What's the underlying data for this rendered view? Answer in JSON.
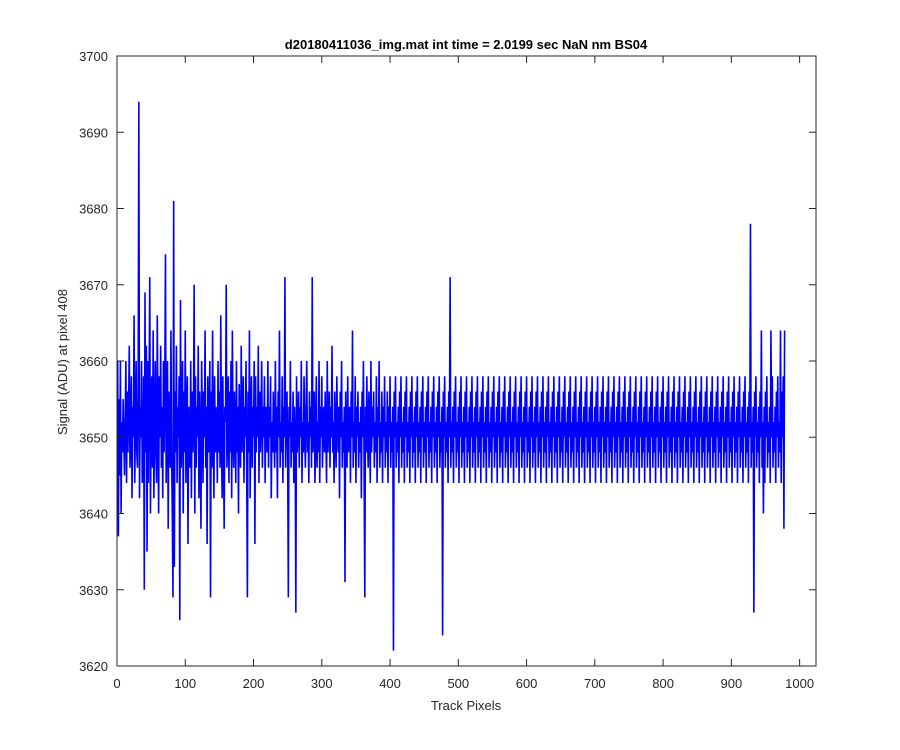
{
  "window": {
    "background": "#ffffff"
  },
  "chart_data": {
    "type": "line",
    "title": "d20180411036_img.mat int time = 2.0199 sec  NaN nm BS04",
    "xlabel": "Track Pixels",
    "ylabel": "Signal (ADU) at pixel 408",
    "xlim": [
      0,
      1024
    ],
    "ylim": [
      3620,
      3700
    ],
    "xticks": [
      0,
      100,
      200,
      300,
      400,
      500,
      600,
      700,
      800,
      900,
      1000
    ],
    "yticks": [
      3620,
      3630,
      3640,
      3650,
      3660,
      3670,
      3680,
      3690,
      3700
    ],
    "grid": false,
    "box": true,
    "colors": {
      "series": "#0000ff",
      "axes": "#262626",
      "background": "#ffffff"
    },
    "series": [
      {
        "x_start": 1,
        "x_step": 1,
        "values": [
          3660,
          3637,
          3655,
          3645,
          3660,
          3640,
          3652,
          3648,
          3655,
          3650,
          3645,
          3652,
          3660,
          3644,
          3656,
          3648,
          3654,
          3662,
          3646,
          3650,
          3658,
          3642,
          3654,
          3650,
          3666,
          3644,
          3652,
          3660,
          3648,
          3646,
          3656,
          3694,
          3642,
          3654,
          3650,
          3660,
          3644,
          3646,
          3658,
          3630,
          3669,
          3648,
          3662,
          3635,
          3660,
          3644,
          3656,
          3671,
          3640,
          3652,
          3658,
          3646,
          3664,
          3642,
          3650,
          3660,
          3648,
          3644,
          3666,
          3652,
          3640,
          3658,
          3650,
          3662,
          3646,
          3654,
          3642,
          3660,
          3648,
          3656,
          3674,
          3644,
          3652,
          3660,
          3638,
          3656,
          3650,
          3646,
          3664,
          3648,
          3640,
          3629,
          3681,
          3633,
          3656,
          3648,
          3662,
          3644,
          3654,
          3650,
          3658,
          3626,
          3668,
          3646,
          3652,
          3660,
          3640,
          3656,
          3648,
          3664,
          3644,
          3652,
          3658,
          3636,
          3654,
          3650,
          3646,
          3660,
          3642,
          3656,
          3648,
          3652,
          3670,
          3640,
          3658,
          3646,
          3654,
          3650,
          3662,
          3642,
          3656,
          3648,
          3638,
          3660,
          3652,
          3644,
          3656,
          3650,
          3664,
          3646,
          3654,
          3636,
          3658,
          3648,
          3652,
          3660,
          3629,
          3656,
          3646,
          3664,
          3650,
          3642,
          3658,
          3648,
          3654,
          3652,
          3644,
          3660,
          3648,
          3656,
          3646,
          3666,
          3650,
          3642,
          3658,
          3648,
          3638,
          3654,
          3652,
          3670,
          3646,
          3650,
          3658,
          3644,
          3656,
          3648,
          3660,
          3642,
          3664,
          3650,
          3646,
          3656,
          3652,
          3644,
          3660,
          3648,
          3654,
          3640,
          3657,
          3650,
          3646,
          3662,
          3648,
          3652,
          3658,
          3644,
          3654,
          3650,
          3660,
          3646,
          3629,
          3656,
          3648,
          3664,
          3642,
          3652,
          3658,
          3646,
          3654,
          3650,
          3660,
          3636,
          3658,
          3648,
          3654,
          3650,
          3662,
          3644,
          3656,
          3648,
          3652,
          3660,
          3646,
          3654,
          3650,
          3658,
          3644,
          3654,
          3652,
          3648,
          3660,
          3646,
          3654,
          3650,
          3658,
          3642,
          3652,
          3648,
          3656,
          3650,
          3646,
          3660,
          3648,
          3654,
          3642,
          3656,
          3650,
          3664,
          3646,
          3652,
          3648,
          3658,
          3644,
          3654,
          3650,
          3671,
          3646,
          3652,
          3656,
          3648,
          3629,
          3654,
          3650,
          3660,
          3646,
          3652,
          3648,
          3656,
          3644,
          3654,
          3650,
          3627,
          3658,
          3648,
          3652,
          3656,
          3646,
          3654,
          3650,
          3660,
          3644,
          3652,
          3648,
          3658,
          3650,
          3646,
          3654,
          3660,
          3648,
          3652,
          3644,
          3656,
          3650,
          3654,
          3646,
          3671,
          3648,
          3652,
          3656,
          3644,
          3650,
          3658,
          3646,
          3652,
          3648,
          3660,
          3644,
          3654,
          3650,
          3658,
          3646,
          3652,
          3654,
          3648,
          3656,
          3650,
          3644,
          3660,
          3648,
          3652,
          3656,
          3646,
          3654,
          3650,
          3662,
          3648,
          3652,
          3644,
          3656,
          3650,
          3646,
          3658,
          3652,
          3648,
          3654,
          3642,
          3656,
          3650,
          3660,
          3646,
          3652,
          3648,
          3654,
          3631,
          3656,
          3650,
          3646,
          3658,
          3648,
          3652,
          3654,
          3644,
          3656,
          3650,
          3664,
          3646,
          3652,
          3648,
          3658,
          3644,
          3654,
          3650,
          3656,
          3646,
          3652,
          3648,
          3654,
          3642,
          3656,
          3650,
          3660,
          3646,
          3629,
          3654,
          3648,
          3658,
          3650,
          3646,
          3656,
          3652,
          3644,
          3660,
          3648,
          3654,
          3650,
          3656,
          3646,
          3652,
          3648,
          3658,
          3644,
          3654,
          3650,
          3660,
          3646,
          3652,
          3648,
          3656,
          3644,
          3654,
          3650,
          3658,
          3646,
          3652,
          3648,
          3656,
          3644,
          3654,
          3650,
          3658,
          3646,
          3652,
          3648,
          3654,
          3622,
          3656,
          3650,
          3658,
          3646,
          3652,
          3648,
          3654,
          3644,
          3656,
          3650,
          3658,
          3646,
          3652,
          3648,
          3654,
          3644,
          3656,
          3650,
          3658,
          3646,
          3652,
          3648,
          3654,
          3644,
          3656,
          3650,
          3658,
          3646,
          3652,
          3648,
          3654,
          3644,
          3656,
          3650,
          3658,
          3646,
          3652,
          3648,
          3654,
          3644,
          3656,
          3650,
          3658,
          3646,
          3652,
          3648,
          3654,
          3644,
          3656,
          3650,
          3658,
          3646,
          3652,
          3648,
          3654,
          3644,
          3656,
          3650,
          3658,
          3646,
          3652,
          3648,
          3654,
          3644,
          3656,
          3650,
          3658,
          3646,
          3652,
          3648,
          3654,
          3624,
          3656,
          3650,
          3658,
          3646,
          3652,
          3648,
          3654,
          3644,
          3656,
          3650,
          3671,
          3646,
          3652,
          3648,
          3654,
          3644,
          3656,
          3650,
          3658,
          3646,
          3652,
          3648,
          3654,
          3644,
          3656,
          3650,
          3658,
          3646,
          3652,
          3648,
          3654,
          3644,
          3656,
          3650,
          3658,
          3646,
          3652,
          3648,
          3654,
          3644,
          3656,
          3650,
          3658,
          3646,
          3652,
          3648,
          3654,
          3644,
          3656,
          3650,
          3658,
          3646,
          3652,
          3648,
          3654,
          3644,
          3656,
          3650,
          3658,
          3646,
          3652,
          3648,
          3654,
          3644,
          3656,
          3650,
          3658,
          3646,
          3652,
          3648,
          3654,
          3644,
          3656,
          3650,
          3658,
          3646,
          3652,
          3648,
          3654,
          3644,
          3656,
          3650,
          3658,
          3646,
          3652,
          3648,
          3654,
          3644,
          3656,
          3650,
          3658,
          3646,
          3652,
          3648,
          3654,
          3644,
          3656,
          3650,
          3658,
          3646,
          3652,
          3648,
          3654,
          3644,
          3656,
          3650,
          3658,
          3646,
          3652,
          3648,
          3654,
          3644,
          3656,
          3650,
          3658,
          3646,
          3652,
          3648,
          3654,
          3644,
          3656,
          3650,
          3658,
          3646,
          3652,
          3648,
          3654,
          3644,
          3656,
          3650,
          3658,
          3646,
          3652,
          3648,
          3654,
          3644,
          3656,
          3650,
          3658,
          3646,
          3652,
          3648,
          3654,
          3644,
          3656,
          3650,
          3658,
          3646,
          3652,
          3648,
          3654,
          3644,
          3656,
          3650,
          3658,
          3646,
          3652,
          3648,
          3654,
          3644,
          3656,
          3650,
          3658,
          3646,
          3652,
          3648,
          3654,
          3644,
          3656,
          3650,
          3658,
          3646,
          3652,
          3648,
          3654,
          3644,
          3656,
          3650,
          3658,
          3646,
          3652,
          3648,
          3654,
          3644,
          3656,
          3650,
          3658,
          3646,
          3652,
          3648,
          3654,
          3644,
          3656,
          3650,
          3658,
          3646,
          3652,
          3648,
          3654,
          3644,
          3656,
          3650,
          3658,
          3646,
          3652,
          3648,
          3654,
          3644,
          3656,
          3650,
          3658,
          3646,
          3652,
          3648,
          3654,
          3644,
          3656,
          3650,
          3658,
          3646,
          3652,
          3648,
          3654,
          3644,
          3656,
          3650,
          3658,
          3646,
          3652,
          3648,
          3654,
          3644,
          3656,
          3650,
          3658,
          3646,
          3652,
          3648,
          3654,
          3644,
          3656,
          3650,
          3658,
          3646,
          3652,
          3648,
          3654,
          3644,
          3656,
          3650,
          3658,
          3646,
          3652,
          3648,
          3654,
          3644,
          3656,
          3650,
          3658,
          3646,
          3652,
          3648,
          3654,
          3644,
          3656,
          3650,
          3658,
          3646,
          3652,
          3648,
          3654,
          3644,
          3656,
          3650,
          3658,
          3646,
          3652,
          3648,
          3654,
          3644,
          3656,
          3650,
          3658,
          3646,
          3652,
          3648,
          3654,
          3644,
          3656,
          3650,
          3658,
          3646,
          3652,
          3648,
          3654,
          3644,
          3656,
          3650,
          3658,
          3646,
          3652,
          3648,
          3654,
          3644,
          3656,
          3650,
          3658,
          3646,
          3652,
          3648,
          3654,
          3644,
          3656,
          3650,
          3658,
          3646,
          3652,
          3648,
          3654,
          3644,
          3656,
          3650,
          3658,
          3646,
          3652,
          3648,
          3654,
          3644,
          3656,
          3650,
          3658,
          3646,
          3652,
          3648,
          3654,
          3644,
          3656,
          3650,
          3658,
          3646,
          3652,
          3648,
          3654,
          3644,
          3656,
          3650,
          3658,
          3646,
          3652,
          3648,
          3654,
          3644,
          3656,
          3650,
          3658,
          3646,
          3652,
          3648,
          3654,
          3644,
          3656,
          3650,
          3658,
          3646,
          3652,
          3648,
          3654,
          3644,
          3656,
          3650,
          3658,
          3646,
          3652,
          3648,
          3654,
          3644,
          3656,
          3650,
          3658,
          3646,
          3652,
          3648,
          3654,
          3644,
          3656,
          3650,
          3658,
          3646,
          3652,
          3648,
          3654,
          3644,
          3656,
          3650,
          3658,
          3646,
          3652,
          3648,
          3654,
          3644,
          3656,
          3650,
          3658,
          3646,
          3652,
          3648,
          3654,
          3644,
          3656,
          3650,
          3658,
          3646,
          3652,
          3648,
          3654,
          3644,
          3656,
          3650,
          3658,
          3646,
          3652,
          3648,
          3654,
          3644,
          3656,
          3650,
          3658,
          3646,
          3652,
          3648,
          3654,
          3644,
          3656,
          3650,
          3658,
          3646,
          3652,
          3648,
          3654,
          3644,
          3656,
          3650,
          3658,
          3646,
          3652,
          3648,
          3654,
          3644,
          3656,
          3650,
          3678,
          3646,
          3652,
          3648,
          3654,
          3627,
          3656,
          3650,
          3658,
          3646,
          3652,
          3648,
          3654,
          3644,
          3656,
          3650,
          3664,
          3646,
          3652,
          3640,
          3654,
          3644,
          3656,
          3650,
          3658,
          3646,
          3652,
          3648,
          3654,
          3644,
          3664,
          3650,
          3658,
          3646,
          3652,
          3648,
          3654,
          3644,
          3656,
          3650,
          3658,
          3646,
          3652,
          3648,
          3664,
          3644,
          3656,
          3650,
          3658,
          3638,
          3664
        ]
      }
    ]
  }
}
